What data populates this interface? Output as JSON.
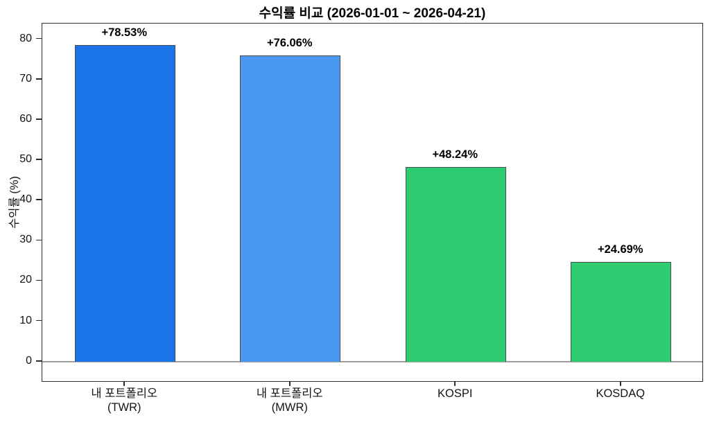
{
  "figure": {
    "background": "#ffffff"
  },
  "chart_data": {
    "type": "bar",
    "title": "수익률 비교 (2026-01-01 ~ 2026-04-21)",
    "ylabel": "수익률 (%)",
    "xlabel": "",
    "categories": [
      "내 포트폴리오 (TWR)",
      "내 포트폴리오 (MWR)",
      "KOSPI",
      "KOSDAQ"
    ],
    "category_lines": [
      [
        "내 포트폴리오",
        "(TWR)"
      ],
      [
        "내 포트폴리오",
        "(MWR)"
      ],
      [
        "KOSPI"
      ],
      [
        "KOSDAQ"
      ]
    ],
    "values": [
      78.53,
      76.06,
      48.24,
      24.69
    ],
    "value_labels": [
      "+78.53%",
      "+76.06%",
      "+48.24%",
      "+24.69%"
    ],
    "bar_colors": [
      "#1a73e8",
      "#4a98f2",
      "#2ecc71",
      "#2ecc71"
    ],
    "bar_edge_color": "#4d4d4d",
    "yticks": [
      0,
      10,
      20,
      30,
      40,
      50,
      60,
      70,
      80
    ],
    "ytick_labels": [
      "0",
      "10",
      "20",
      "30",
      "40",
      "50",
      "60",
      "70",
      "80"
    ],
    "ylim": [
      -5.2,
      83.9
    ],
    "grid": false,
    "legend": "none",
    "zero_line_color": "#9e9e9e",
    "axis_color": "#2e2e2e",
    "text_color": "#000000"
  }
}
